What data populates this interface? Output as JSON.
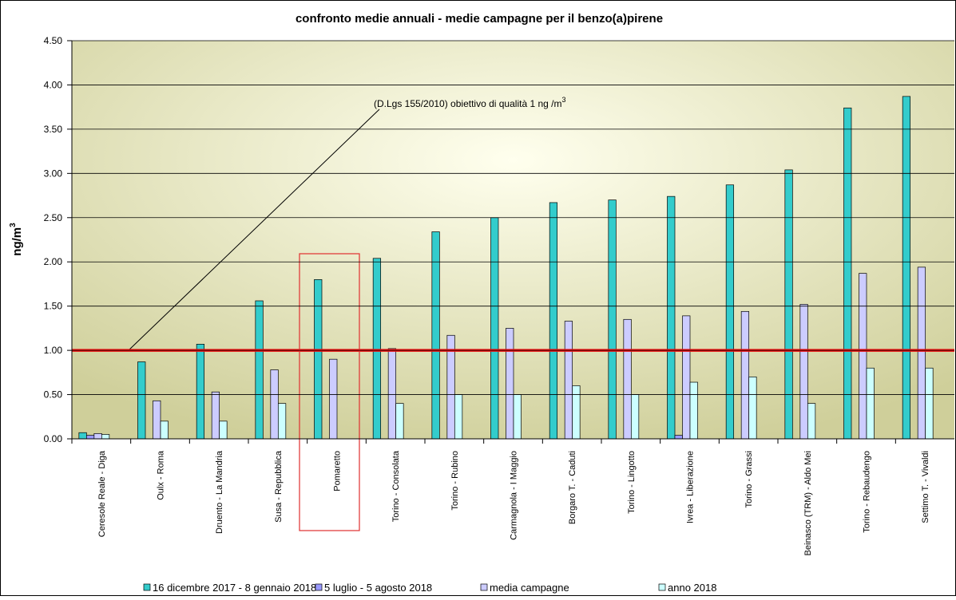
{
  "chart_data": {
    "type": "bar",
    "title": "confronto medie annuali - medie campagne per il benzo(a)pirene",
    "ylabel": {
      "text": "ng/m",
      "sup": "3"
    },
    "annotation": {
      "text": "(D.Lgs 155/2010) obiettivo di qualità 1 ng /m",
      "sup": "3"
    },
    "threshold": 1,
    "threshold_color": "#ee1111",
    "categories": [
      "Ceresole Reale - Diga",
      "Oulx - Roma",
      "Druento - La Mandria",
      "Susa - Repubblica",
      "Pomaretto",
      "Torino - Consolata",
      "Torino - Rubino",
      "Carmagnola - I Maggio",
      "Borgaro T. - Caduti",
      "Torino - Lingotto",
      "Ivrea - Liberazione",
      "Torino - Grassi",
      "Beinasco (TRM) - Aldo Mei",
      "Torino - Rebaudengo",
      "Settimo T. - Vivaldi"
    ],
    "series": [
      {
        "name": "16 dicembre 2017 - 8 gennaio 2018",
        "color": "#33cccc",
        "values": [
          0.07,
          0.87,
          1.07,
          1.56,
          1.8,
          2.04,
          2.34,
          2.5,
          2.67,
          2.7,
          2.74,
          2.87,
          3.04,
          3.74,
          3.87
        ]
      },
      {
        "name": "5 luglio - 5 agosto 2018",
        "color": "#9999ff",
        "values": [
          0.04,
          null,
          null,
          null,
          null,
          null,
          null,
          null,
          null,
          null,
          0.04,
          null,
          null,
          null,
          null
        ]
      },
      {
        "name": "media campagne",
        "color": "#ccccff",
        "values": [
          0.06,
          0.43,
          0.53,
          0.78,
          0.9,
          1.02,
          1.17,
          1.25,
          1.33,
          1.35,
          1.39,
          1.44,
          1.52,
          1.87,
          1.94
        ]
      },
      {
        "name": "anno 2018",
        "color": "#ccffff",
        "values": [
          0.05,
          0.2,
          0.2,
          0.4,
          null,
          0.4,
          0.5,
          0.5,
          0.6,
          0.5,
          0.64,
          0.7,
          0.4,
          0.8,
          0.8
        ]
      }
    ],
    "ylim": [
      0,
      4.5
    ],
    "yticks": [
      {
        "value": 0,
        "label": "0.00"
      },
      {
        "value": 0.5,
        "label": "0.50"
      },
      {
        "value": 1,
        "label": "1.00"
      },
      {
        "value": 1.5,
        "label": "1.50"
      },
      {
        "value": 2,
        "label": "2.00"
      },
      {
        "value": 2.5,
        "label": "2.50"
      },
      {
        "value": 3,
        "label": "3.00"
      },
      {
        "value": 3.5,
        "label": "3.50"
      },
      {
        "value": 4,
        "label": "4.00"
      },
      {
        "value": 4.5,
        "label": "4.50"
      }
    ],
    "grid": true
  }
}
